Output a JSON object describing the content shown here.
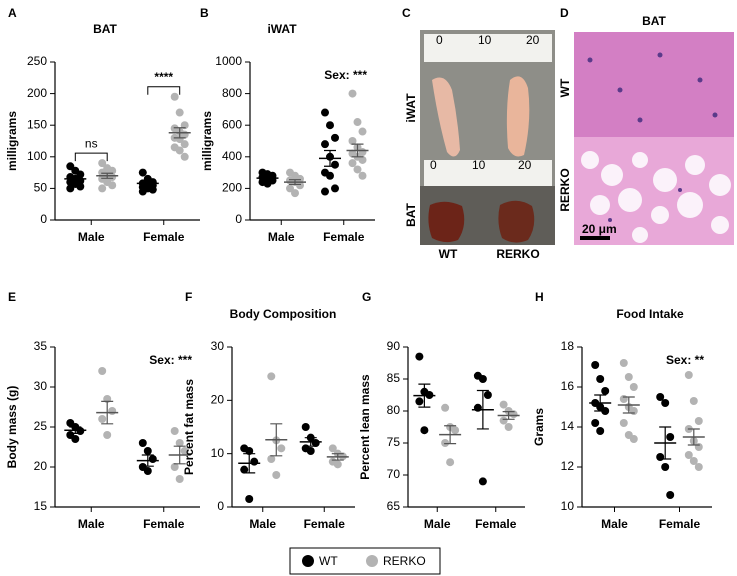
{
  "chart_data": [
    {
      "type": "dot",
      "panel": "A",
      "title": "BAT",
      "ylabel": "milligrams",
      "categories": [
        "Male",
        "Female"
      ],
      "ylim": [
        0,
        250
      ],
      "yticks": [
        0,
        50,
        100,
        150,
        200,
        250
      ],
      "brackets": [
        "ns",
        "****"
      ],
      "series": [
        {
          "name": "WT",
          "color": "#000000",
          "values": [
            [
              85,
              78,
              72,
              68,
              65,
              62,
              60,
              57,
              53,
              50
            ],
            [
              75,
              65,
              60,
              58,
              55,
              55,
              52,
              50,
              48,
              45
            ]
          ],
          "mean": [
            65,
            58
          ],
          "sem": [
            4,
            3
          ]
        },
        {
          "name": "RERKO",
          "color": "#b3b3b3",
          "values": [
            [
              90,
              82,
              78,
              75,
              70,
              68,
              65,
              60,
              55,
              50
            ],
            [
              195,
              170,
              150,
              145,
              140,
              135,
              130,
              128,
              120,
              115,
              110,
              100
            ]
          ],
          "mean": [
            70,
            138
          ],
          "sem": [
            4,
            8
          ]
        }
      ]
    },
    {
      "type": "dot",
      "panel": "B",
      "title": "iWAT",
      "ylabel": "milligrams",
      "categories": [
        "Male",
        "Female"
      ],
      "ylim": [
        0,
        1000
      ],
      "yticks": [
        0,
        200,
        400,
        600,
        800,
        1000
      ],
      "annotation": "Sex: ***",
      "series": [
        {
          "name": "WT",
          "color": "#000000",
          "values": [
            [
              300,
              290,
              280,
              270,
              260,
              250,
              240,
              230
            ],
            [
              680,
              600,
              520,
              480,
              400,
              350,
              300,
              280,
              200,
              180
            ]
          ],
          "mean": [
            265,
            390
          ],
          "sem": [
            10,
            50
          ]
        },
        {
          "name": "RERKO",
          "color": "#b3b3b3",
          "values": [
            [
              300,
              280,
              260,
              250,
              240,
              220,
              200,
              170
            ],
            [
              800,
              620,
              560,
              500,
              460,
              430,
              420,
              400,
              380,
              360,
              320,
              280
            ]
          ],
          "mean": [
            240,
            440
          ],
          "sem": [
            15,
            40
          ]
        }
      ]
    },
    {
      "type": "dot",
      "panel": "E",
      "ylabel": "Body mass (g)",
      "categories": [
        "Male",
        "Female"
      ],
      "ylim": [
        15,
        35
      ],
      "yticks": [
        15,
        20,
        25,
        30,
        35
      ],
      "annotation": "Sex: ***",
      "series": [
        {
          "name": "WT",
          "color": "#000000",
          "values": [
            [
              25.5,
              25,
              24.5,
              24,
              23.5
            ],
            [
              23,
              22,
              21,
              20,
              19.5
            ]
          ],
          "mean": [
            24.6,
            20.8
          ],
          "sem": [
            0.4,
            0.7
          ]
        },
        {
          "name": "RERKO",
          "color": "#b3b3b3",
          "values": [
            [
              32,
              28.5,
              27,
              26,
              24
            ],
            [
              24.5,
              23,
              22,
              20,
              18.5
            ]
          ],
          "mean": [
            26.8,
            21.5
          ],
          "sem": [
            1.4,
            1.1
          ]
        }
      ]
    },
    {
      "type": "dot",
      "panel": "F",
      "title": "Body Composition",
      "ylabel": "Percent fat mass",
      "categories": [
        "Male",
        "Female"
      ],
      "ylim": [
        0,
        30
      ],
      "yticks": [
        0,
        10,
        20,
        30
      ],
      "series": [
        {
          "name": "WT",
          "color": "#000000",
          "values": [
            [
              11,
              10.5,
              8.5,
              7,
              1.5
            ],
            [
              15,
              13,
              12,
              11,
              10.5
            ]
          ],
          "mean": [
            8.2,
            12.2
          ],
          "sem": [
            1.8,
            0.8
          ]
        },
        {
          "name": "RERKO",
          "color": "#b3b3b3",
          "values": [
            [
              24.5,
              12.5,
              11,
              9,
              6
            ],
            [
              11,
              10,
              9.5,
              8.5,
              8
            ]
          ],
          "mean": [
            12.6,
            9.4
          ],
          "sem": [
            3,
            0.6
          ]
        }
      ]
    },
    {
      "type": "dot",
      "panel": "G",
      "ylabel": "Percent lean mass",
      "categories": [
        "Male",
        "Female"
      ],
      "ylim": [
        65,
        90
      ],
      "yticks": [
        65,
        70,
        75,
        80,
        85,
        90
      ],
      "series": [
        {
          "name": "WT",
          "color": "#000000",
          "values": [
            [
              88.5,
              83,
              82.5,
              81.5,
              77
            ],
            [
              85.5,
              85,
              82.5,
              80.5,
              69
            ]
          ],
          "mean": [
            82.4,
            80.2
          ],
          "sem": [
            1.8,
            3
          ]
        },
        {
          "name": "RERKO",
          "color": "#b3b3b3",
          "values": [
            [
              80.5,
              77.5,
              77,
              75,
              72
            ],
            [
              81,
              80,
              79.5,
              78.5,
              77.5
            ]
          ],
          "mean": [
            76.3,
            79.3
          ],
          "sem": [
            1.4,
            0.6
          ]
        }
      ]
    },
    {
      "type": "dot",
      "panel": "H",
      "title": "Food Intake",
      "ylabel": "Grams",
      "categories": [
        "Male",
        "Female"
      ],
      "ylim": [
        10,
        18
      ],
      "yticks": [
        10,
        12,
        14,
        16,
        18
      ],
      "annotation": "Sex: **",
      "series": [
        {
          "name": "WT",
          "color": "#000000",
          "values": [
            [
              17.1,
              16.4,
              15.8,
              15.2,
              15,
              14.8,
              14.2,
              13.8
            ],
            [
              15.5,
              15.2,
              13.5,
              12.5,
              12,
              10.6
            ]
          ],
          "mean": [
            15.2,
            13.2
          ],
          "sem": [
            0.4,
            0.8
          ]
        },
        {
          "name": "RERKO",
          "color": "#b3b3b3",
          "values": [
            [
              17.2,
              16.5,
              16,
              15.4,
              15,
              14.8,
              14.2,
              13.6,
              13.4
            ],
            [
              16.6,
              15.3,
              14.3,
              13.9,
              13.3,
              13,
              12.6,
              12.3,
              12
            ]
          ],
          "mean": [
            15.1,
            13.5
          ],
          "sem": [
            0.4,
            0.4
          ]
        }
      ]
    }
  ],
  "images": [
    {
      "panel": "C",
      "ruler_top": [
        "0",
        "10",
        "20"
      ],
      "ruler_bottom": [
        "0",
        "10",
        "20"
      ],
      "side_labels": [
        "iWAT",
        "BAT"
      ],
      "bottom_labels": [
        "WT",
        "RERKO"
      ]
    },
    {
      "panel": "D",
      "title": "BAT",
      "side_labels": [
        "WT",
        "RERKO"
      ],
      "scale_bar": "20 μm"
    }
  ]
}
